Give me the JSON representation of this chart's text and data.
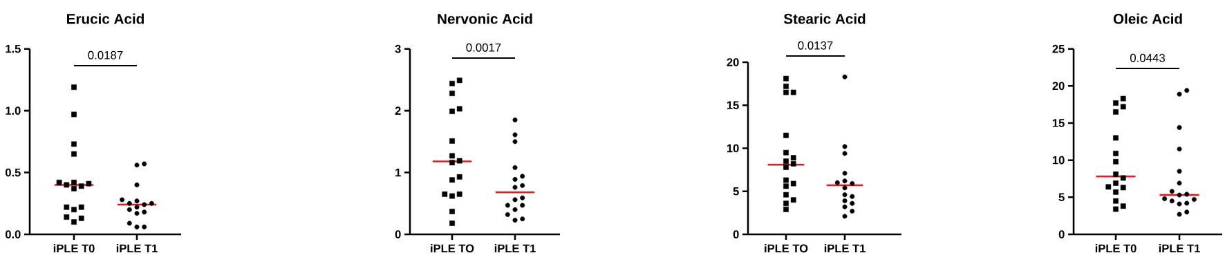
{
  "chart_data": [
    {
      "type": "scatter",
      "title": "Erucic Acid",
      "categories": [
        "iPLE T0",
        "iPLE T1"
      ],
      "series": [
        {
          "x": [
            "iPLE T0",
            "iPLE T0",
            "iPLE T0",
            "iPLE T0",
            "iPLE T0",
            "iPLE T0",
            "iPLE T0",
            "iPLE T0",
            "iPLE T0",
            "iPLE T0",
            "iPLE T0",
            "iPLE T0",
            "iPLE T0",
            "iPLE T0",
            "iPLE T0",
            "iPLE T0"
          ],
          "values": [
            1.19,
            0.97,
            0.73,
            0.65,
            0.42,
            0.39,
            0.41,
            0.37,
            0.4,
            0.42,
            0.22,
            0.2,
            0.22,
            0.14,
            0.13,
            0.1
          ],
          "color": "#000000",
          "marker": "square"
        },
        {
          "x": [
            "iPLE T1",
            "iPLE T1",
            "iPLE T1",
            "iPLE T1",
            "iPLE T1",
            "iPLE T1",
            "iPLE T1",
            "iPLE T1",
            "iPLE T1",
            "iPLE T1",
            "iPLE T1",
            "iPLE T1",
            "iPLE T1",
            "iPLE T1",
            "iPLE T1"
          ],
          "values": [
            0.56,
            0.57,
            0.4,
            0.27,
            0.25,
            0.28,
            0.24,
            0.25,
            0.18,
            0.22,
            0.17,
            0.2,
            0.09,
            0.06,
            0.06
          ],
          "color": "#000000",
          "marker": "circle"
        }
      ],
      "ylim": [
        0,
        1.5
      ],
      "yticks": [
        {
          "value": 0,
          "label": "0.0"
        },
        {
          "value": 0.5,
          "label": "0.5"
        },
        {
          "value": 1,
          "label": "1.0"
        },
        {
          "value": 1.5,
          "label": "1.5"
        }
      ],
      "ref_lines": [
        {
          "axis": "y",
          "value": 0.4,
          "color": "#e8191f"
        },
        {
          "axis": "y",
          "value": 0.24,
          "color": "#e8191f"
        }
      ],
      "annotations": [
        "0.0187"
      ]
    },
    {
      "type": "scatter",
      "title": "Nervonic Acid",
      "categories": [
        "iPLE TO",
        "iPLE T1"
      ],
      "series": [
        {
          "x": [
            "iPLE TO",
            "iPLE TO",
            "iPLE TO",
            "iPLE TO",
            "iPLE TO",
            "iPLE TO",
            "iPLE TO",
            "iPLE TO",
            "iPLE TO",
            "iPLE TO",
            "iPLE TO",
            "iPLE TO",
            "iPLE TO",
            "iPLE TO",
            "iPLE TO",
            "iPLE TO"
          ],
          "values": [
            2.49,
            2.44,
            2.28,
            1.99,
            2.03,
            1.51,
            1.27,
            1.16,
            1.19,
            0.93,
            0.88,
            0.65,
            0.65,
            0.62,
            0.37,
            0.18
          ],
          "color": "#000000",
          "marker": "square"
        },
        {
          "x": [
            "iPLE T1",
            "iPLE T1",
            "iPLE T1",
            "iPLE T1",
            "iPLE T1",
            "iPLE T1",
            "iPLE T1",
            "iPLE T1",
            "iPLE T1",
            "iPLE T1",
            "iPLE T1",
            "iPLE T1",
            "iPLE T1",
            "iPLE T1",
            "iPLE T1",
            "iPLE T1"
          ],
          "values": [
            1.85,
            1.61,
            1.5,
            1.08,
            0.89,
            0.94,
            0.79,
            0.76,
            0.59,
            0.56,
            0.47,
            0.47,
            0.4,
            0.32,
            0.25,
            0.23
          ],
          "color": "#000000",
          "marker": "circle"
        }
      ],
      "ylim": [
        0,
        3
      ],
      "yticks": [
        0,
        1,
        2,
        3
      ],
      "ref_lines": [
        {
          "axis": "y",
          "value": 1.18,
          "color": "#e8191f"
        },
        {
          "axis": "y",
          "value": 0.68,
          "color": "#e8191f"
        }
      ],
      "annotations": [
        "0.0017"
      ]
    },
    {
      "type": "scatter",
      "title": "Stearic Acid",
      "categories": [
        "iPLE TO",
        "iPLE T1"
      ],
      "series": [
        {
          "x": [
            "iPLE TO",
            "iPLE TO",
            "iPLE TO",
            "iPLE TO",
            "iPLE TO",
            "iPLE TO",
            "iPLE TO",
            "iPLE TO",
            "iPLE TO",
            "iPLE TO",
            "iPLE TO",
            "iPLE TO",
            "iPLE TO",
            "iPLE TO",
            "iPLE TO",
            "iPLE TO",
            "iPLE TO"
          ],
          "values": [
            18.1,
            17.2,
            16.5,
            16.5,
            11.5,
            9.5,
            8.9,
            8.5,
            8.2,
            7.8,
            6.3,
            5.9,
            5.6,
            4.6,
            4.0,
            3.6,
            2.9
          ],
          "color": "#000000",
          "marker": "square"
        },
        {
          "x": [
            "iPLE T1",
            "iPLE T1",
            "iPLE T1",
            "iPLE T1",
            "iPLE T1",
            "iPLE T1",
            "iPLE T1",
            "iPLE T1",
            "iPLE T1",
            "iPLE T1",
            "iPLE T1",
            "iPLE T1",
            "iPLE T1",
            "iPLE T1",
            "iPLE T1"
          ],
          "values": [
            18.3,
            10.2,
            9.4,
            7.1,
            6.2,
            5.9,
            6.0,
            5.4,
            4.6,
            4.4,
            3.9,
            3.6,
            3.2,
            2.7,
            2.1
          ],
          "color": "#000000",
          "marker": "circle"
        }
      ],
      "ylim": [
        0,
        20
      ],
      "yticks": [
        0,
        5,
        10,
        15,
        20
      ],
      "ref_lines": [
        {
          "axis": "y",
          "value": 8.1,
          "color": "#e8191f"
        },
        {
          "axis": "y",
          "value": 5.7,
          "color": "#e8191f"
        }
      ],
      "annotations": [
        "0.0137"
      ]
    },
    {
      "type": "scatter",
      "title": "Oleic Acid",
      "categories": [
        "iPLE T0",
        "iPLE T1"
      ],
      "series": [
        {
          "x": [
            "iPLE T0",
            "iPLE T0",
            "iPLE T0",
            "iPLE T0",
            "iPLE T0",
            "iPLE T0",
            "iPLE T0",
            "iPLE T0",
            "iPLE T0",
            "iPLE T0",
            "iPLE T0",
            "iPLE T0",
            "iPLE T0",
            "iPLE T0",
            "iPLE T0",
            "iPLE T0"
          ],
          "values": [
            18.3,
            17.7,
            17.2,
            16.5,
            13.0,
            10.9,
            9.8,
            8.1,
            7.6,
            6.9,
            6.4,
            6.3,
            5.7,
            4.5,
            3.8,
            3.4
          ],
          "color": "#000000",
          "marker": "square"
        },
        {
          "x": [
            "iPLE T1",
            "iPLE T1",
            "iPLE T1",
            "iPLE T1",
            "iPLE T1",
            "iPLE T1",
            "iPLE T1",
            "iPLE T1",
            "iPLE T1",
            "iPLE T1",
            "iPLE T1",
            "iPLE T1",
            "iPLE T1",
            "iPLE T1",
            "iPLE T1",
            "iPLE T1"
          ],
          "values": [
            19.4,
            18.9,
            14.4,
            11.5,
            8.5,
            6.9,
            5.8,
            5.4,
            5.3,
            4.8,
            4.7,
            4.5,
            4.2,
            4.1,
            3.0,
            2.7
          ],
          "color": "#000000",
          "marker": "circle"
        }
      ],
      "ylim": [
        0,
        25
      ],
      "yticks": [
        0,
        5,
        10,
        15,
        20,
        25
      ],
      "ref_lines": [
        {
          "axis": "y",
          "value": 7.8,
          "color": "#e8191f"
        },
        {
          "axis": "y",
          "value": 5.3,
          "color": "#e8191f"
        }
      ],
      "annotations": [
        "0.0443"
      ]
    }
  ]
}
